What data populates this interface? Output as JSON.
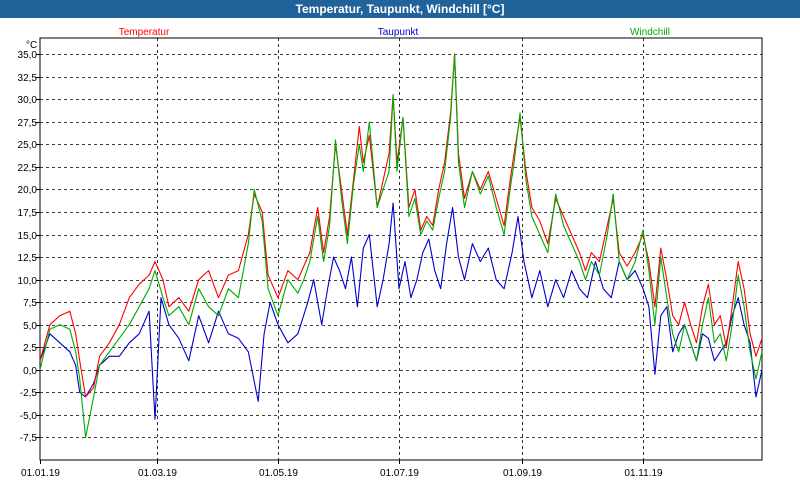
{
  "window": {
    "title": "Temperatur, Taupunkt, Windchill [°C]"
  },
  "chart_data": {
    "type": "line",
    "unit_label": "°C",
    "ylim": [
      -10,
      36.8
    ],
    "yticks": [
      35.0,
      32.5,
      30.0,
      27.5,
      25.0,
      22.5,
      20.0,
      17.5,
      15.0,
      12.5,
      10.0,
      7.5,
      5.0,
      2.5,
      0.0,
      -2.5,
      -5.0,
      -7.5
    ],
    "ytick_labels": [
      "35,0",
      "32,5",
      "30,0",
      "27,5",
      "25,0",
      "22,5",
      "20,0",
      "17,5",
      "15,0",
      "12,5",
      "10,0",
      "7,5",
      "5,0",
      "2,5",
      "0,0",
      "-2,5",
      "-5,0",
      "-7,5"
    ],
    "x_range_days": [
      0,
      364
    ],
    "xticks": [
      {
        "day": 0,
        "label": "01.01.19"
      },
      {
        "day": 59,
        "label": "01.03.19"
      },
      {
        "day": 120,
        "label": "01.05.19"
      },
      {
        "day": 181,
        "label": "01.07.19"
      },
      {
        "day": 243,
        "label": "01.09.19"
      },
      {
        "day": 304,
        "label": "01.11.19"
      }
    ],
    "grid": true,
    "series": [
      {
        "name": "Temperatur",
        "color": "#ff0000",
        "points": [
          [
            0,
            1.0
          ],
          [
            5,
            5.0
          ],
          [
            10,
            6.0
          ],
          [
            15,
            6.5
          ],
          [
            18,
            4.0
          ],
          [
            20,
            1.0
          ],
          [
            23,
            -3.0
          ],
          [
            27,
            -2.0
          ],
          [
            30,
            1.5
          ],
          [
            35,
            3.0
          ],
          [
            40,
            5.0
          ],
          [
            45,
            8.0
          ],
          [
            50,
            9.5
          ],
          [
            55,
            10.5
          ],
          [
            58,
            12.0
          ],
          [
            62,
            10.0
          ],
          [
            65,
            7.0
          ],
          [
            70,
            8.0
          ],
          [
            75,
            6.5
          ],
          [
            80,
            10.0
          ],
          [
            85,
            11.0
          ],
          [
            90,
            8.0
          ],
          [
            95,
            10.5
          ],
          [
            100,
            11.0
          ],
          [
            105,
            15.0
          ],
          [
            108,
            19.5
          ],
          [
            112,
            17.5
          ],
          [
            115,
            10.5
          ],
          [
            120,
            8.0
          ],
          [
            125,
            11.0
          ],
          [
            130,
            10.0
          ],
          [
            133,
            11.5
          ],
          [
            136,
            13.0
          ],
          [
            140,
            18.0
          ],
          [
            143,
            13.0
          ],
          [
            146,
            17.0
          ],
          [
            149,
            25.0
          ],
          [
            152,
            20.0
          ],
          [
            155,
            15.0
          ],
          [
            158,
            21.0
          ],
          [
            161,
            27.0
          ],
          [
            163,
            23.0
          ],
          [
            166,
            26.0
          ],
          [
            170,
            18.0
          ],
          [
            173,
            21.0
          ],
          [
            176,
            24.0
          ],
          [
            178,
            30.5
          ],
          [
            180,
            23.0
          ],
          [
            183,
            28.0
          ],
          [
            186,
            18.0
          ],
          [
            189,
            20.0
          ],
          [
            192,
            15.5
          ],
          [
            195,
            17.0
          ],
          [
            198,
            16.0
          ],
          [
            201,
            20.0
          ],
          [
            204,
            23.0
          ],
          [
            207,
            28.5
          ],
          [
            209,
            35.0
          ],
          [
            211,
            24.0
          ],
          [
            214,
            19.0
          ],
          [
            218,
            22.0
          ],
          [
            222,
            20.0
          ],
          [
            226,
            22.0
          ],
          [
            230,
            19.0
          ],
          [
            234,
            16.0
          ],
          [
            237,
            21.0
          ],
          [
            239,
            24.0
          ],
          [
            242,
            28.0
          ],
          [
            245,
            22.0
          ],
          [
            248,
            18.0
          ],
          [
            252,
            16.5
          ],
          [
            256,
            14.0
          ],
          [
            260,
            19.0
          ],
          [
            264,
            17.0
          ],
          [
            268,
            15.0
          ],
          [
            272,
            13.0
          ],
          [
            275,
            11.0
          ],
          [
            278,
            13.0
          ],
          [
            282,
            12.0
          ],
          [
            286,
            16.0
          ],
          [
            289,
            19.0
          ],
          [
            292,
            13.0
          ],
          [
            296,
            11.5
          ],
          [
            300,
            13.0
          ],
          [
            304,
            15.0
          ],
          [
            307,
            12.0
          ],
          [
            310,
            7.0
          ],
          [
            313,
            13.5
          ],
          [
            316,
            10.0
          ],
          [
            319,
            6.0
          ],
          [
            322,
            5.0
          ],
          [
            325,
            7.5
          ],
          [
            328,
            5.0
          ],
          [
            331,
            3.0
          ],
          [
            334,
            7.0
          ],
          [
            337,
            9.5
          ],
          [
            340,
            5.0
          ],
          [
            343,
            6.0
          ],
          [
            346,
            2.5
          ],
          [
            349,
            7.0
          ],
          [
            352,
            12.0
          ],
          [
            355,
            9.0
          ],
          [
            358,
            4.0
          ],
          [
            361,
            1.5
          ],
          [
            364,
            3.5
          ]
        ]
      },
      {
        "name": "Taupunkt",
        "color": "#0000cc",
        "points": [
          [
            0,
            1.0
          ],
          [
            5,
            4.0
          ],
          [
            10,
            3.0
          ],
          [
            15,
            2.0
          ],
          [
            18,
            0.5
          ],
          [
            20,
            -2.5
          ],
          [
            23,
            -3.0
          ],
          [
            27,
            -1.5
          ],
          [
            30,
            0.5
          ],
          [
            35,
            1.5
          ],
          [
            40,
            1.5
          ],
          [
            45,
            3.0
          ],
          [
            50,
            4.0
          ],
          [
            55,
            6.5
          ],
          [
            58,
            -5.5
          ],
          [
            61,
            8.0
          ],
          [
            65,
            5.0
          ],
          [
            70,
            3.5
          ],
          [
            75,
            1.0
          ],
          [
            80,
            6.0
          ],
          [
            85,
            3.0
          ],
          [
            90,
            6.5
          ],
          [
            95,
            4.0
          ],
          [
            100,
            3.5
          ],
          [
            105,
            2.0
          ],
          [
            110,
            -3.5
          ],
          [
            113,
            4.0
          ],
          [
            116,
            7.5
          ],
          [
            120,
            5.0
          ],
          [
            125,
            3.0
          ],
          [
            130,
            4.0
          ],
          [
            135,
            7.5
          ],
          [
            138,
            10.0
          ],
          [
            142,
            5.0
          ],
          [
            145,
            9.0
          ],
          [
            148,
            12.5
          ],
          [
            151,
            11.0
          ],
          [
            154,
            9.0
          ],
          [
            157,
            12.5
          ],
          [
            160,
            7.0
          ],
          [
            163,
            13.5
          ],
          [
            166,
            15.0
          ],
          [
            170,
            7.0
          ],
          [
            173,
            10.0
          ],
          [
            176,
            14.0
          ],
          [
            178,
            18.5
          ],
          [
            181,
            9.0
          ],
          [
            184,
            12.0
          ],
          [
            187,
            8.0
          ],
          [
            190,
            10.0
          ],
          [
            193,
            13.0
          ],
          [
            196,
            14.5
          ],
          [
            199,
            11.0
          ],
          [
            202,
            9.0
          ],
          [
            205,
            14.0
          ],
          [
            208,
            18.0
          ],
          [
            211,
            12.5
          ],
          [
            214,
            10.0
          ],
          [
            218,
            14.0
          ],
          [
            222,
            12.0
          ],
          [
            226,
            13.5
          ],
          [
            230,
            10.0
          ],
          [
            234,
            9.0
          ],
          [
            238,
            13.0
          ],
          [
            241,
            17.0
          ],
          [
            244,
            12.0
          ],
          [
            248,
            8.0
          ],
          [
            252,
            11.0
          ],
          [
            256,
            7.0
          ],
          [
            260,
            10.0
          ],
          [
            264,
            8.0
          ],
          [
            268,
            11.0
          ],
          [
            272,
            9.0
          ],
          [
            276,
            8.0
          ],
          [
            280,
            12.0
          ],
          [
            284,
            9.0
          ],
          [
            288,
            8.0
          ],
          [
            292,
            12.0
          ],
          [
            296,
            10.0
          ],
          [
            300,
            11.0
          ],
          [
            304,
            9.0
          ],
          [
            307,
            7.0
          ],
          [
            310,
            -0.5
          ],
          [
            313,
            6.0
          ],
          [
            316,
            7.0
          ],
          [
            319,
            2.0
          ],
          [
            322,
            4.0
          ],
          [
            325,
            5.0
          ],
          [
            328,
            3.0
          ],
          [
            331,
            1.0
          ],
          [
            334,
            4.0
          ],
          [
            337,
            3.5
          ],
          [
            340,
            1.0
          ],
          [
            343,
            2.0
          ],
          [
            346,
            3.0
          ],
          [
            349,
            6.0
          ],
          [
            352,
            8.0
          ],
          [
            355,
            5.0
          ],
          [
            358,
            3.0
          ],
          [
            361,
            -3.0
          ],
          [
            364,
            0.0
          ]
        ]
      },
      {
        "name": "Windchill",
        "color": "#00aa00",
        "points": [
          [
            0,
            0.0
          ],
          [
            5,
            4.5
          ],
          [
            10,
            5.0
          ],
          [
            15,
            4.5
          ],
          [
            18,
            2.0
          ],
          [
            20,
            -1.0
          ],
          [
            23,
            -7.5
          ],
          [
            27,
            -3.0
          ],
          [
            30,
            0.5
          ],
          [
            35,
            2.0
          ],
          [
            40,
            3.5
          ],
          [
            45,
            5.0
          ],
          [
            50,
            7.0
          ],
          [
            55,
            9.0
          ],
          [
            58,
            11.0
          ],
          [
            62,
            8.0
          ],
          [
            65,
            6.0
          ],
          [
            70,
            7.0
          ],
          [
            75,
            5.0
          ],
          [
            80,
            9.0
          ],
          [
            85,
            7.0
          ],
          [
            90,
            6.0
          ],
          [
            95,
            9.0
          ],
          [
            100,
            8.0
          ],
          [
            105,
            14.0
          ],
          [
            108,
            20.0
          ],
          [
            112,
            16.5
          ],
          [
            115,
            9.0
          ],
          [
            120,
            6.0
          ],
          [
            125,
            10.0
          ],
          [
            130,
            8.5
          ],
          [
            133,
            10.0
          ],
          [
            136,
            12.0
          ],
          [
            140,
            17.0
          ],
          [
            143,
            12.0
          ],
          [
            146,
            16.0
          ],
          [
            149,
            25.5
          ],
          [
            152,
            19.0
          ],
          [
            155,
            14.0
          ],
          [
            158,
            20.5
          ],
          [
            161,
            25.0
          ],
          [
            163,
            22.0
          ],
          [
            166,
            27.5
          ],
          [
            170,
            18.0
          ],
          [
            173,
            20.0
          ],
          [
            176,
            22.0
          ],
          [
            178,
            30.5
          ],
          [
            180,
            22.0
          ],
          [
            183,
            28.0
          ],
          [
            186,
            17.0
          ],
          [
            189,
            19.0
          ],
          [
            192,
            15.0
          ],
          [
            195,
            16.5
          ],
          [
            198,
            15.5
          ],
          [
            201,
            19.0
          ],
          [
            204,
            22.0
          ],
          [
            207,
            28.0
          ],
          [
            209,
            35.0
          ],
          [
            211,
            23.0
          ],
          [
            214,
            18.0
          ],
          [
            218,
            22.0
          ],
          [
            222,
            19.5
          ],
          [
            226,
            21.5
          ],
          [
            230,
            18.0
          ],
          [
            234,
            15.0
          ],
          [
            237,
            20.0
          ],
          [
            239,
            23.0
          ],
          [
            242,
            28.5
          ],
          [
            245,
            21.0
          ],
          [
            248,
            17.0
          ],
          [
            252,
            15.0
          ],
          [
            256,
            13.0
          ],
          [
            260,
            19.5
          ],
          [
            264,
            16.0
          ],
          [
            268,
            14.0
          ],
          [
            272,
            12.0
          ],
          [
            275,
            10.0
          ],
          [
            278,
            12.0
          ],
          [
            282,
            10.5
          ],
          [
            286,
            15.0
          ],
          [
            289,
            19.5
          ],
          [
            292,
            12.0
          ],
          [
            296,
            10.0
          ],
          [
            300,
            12.0
          ],
          [
            304,
            15.5
          ],
          [
            307,
            11.0
          ],
          [
            310,
            5.0
          ],
          [
            313,
            12.5
          ],
          [
            316,
            8.0
          ],
          [
            319,
            4.0
          ],
          [
            322,
            2.0
          ],
          [
            325,
            5.0
          ],
          [
            328,
            3.0
          ],
          [
            331,
            1.0
          ],
          [
            334,
            5.0
          ],
          [
            337,
            8.0
          ],
          [
            340,
            3.0
          ],
          [
            343,
            4.0
          ],
          [
            346,
            1.0
          ],
          [
            349,
            5.0
          ],
          [
            352,
            10.5
          ],
          [
            355,
            7.0
          ],
          [
            358,
            2.0
          ],
          [
            361,
            -1.0
          ],
          [
            364,
            2.0
          ]
        ]
      }
    ]
  }
}
